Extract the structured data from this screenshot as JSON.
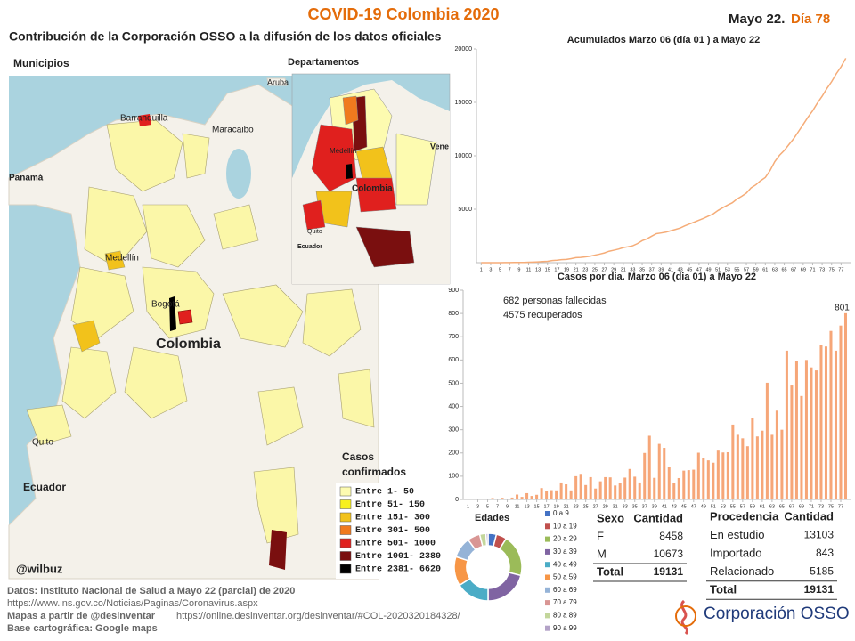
{
  "header": {
    "title": "COVID-19 Colombia 2020",
    "date": "Mayo 22.",
    "day": "Día 78",
    "subtitle": "Contribución de la Corporación OSSO a la difusión de los datos oficiales"
  },
  "maps": {
    "municipios": {
      "title": "Municipios",
      "places": [
        "Aruba",
        "Barranquilla",
        "Maracaibo",
        "Medellín",
        "Bogotá",
        "Colombia",
        "Quito",
        "Ecuador",
        "Panamá"
      ]
    },
    "departamentos": {
      "title": "Departamentos",
      "places": [
        "Medellín",
        "Colombia",
        "Quito",
        "Ecuador",
        "Vene"
      ]
    },
    "legend": {
      "title_lines": [
        "Casos",
        "confirmados"
      ],
      "items": [
        {
          "label": "Entre 1- 50",
          "color": "#fdfbb0"
        },
        {
          "label": "Entre 51- 150",
          "color": "#f7f01e"
        },
        {
          "label": "Entre 151- 300",
          "color": "#f2c21b"
        },
        {
          "label": "Entre 301- 500",
          "color": "#f07a1e"
        },
        {
          "label": "Entre 501- 1000",
          "color": "#e0201e"
        },
        {
          "label": "Entre 1001- 2380",
          "color": "#7a0f0f"
        },
        {
          "label": "Entre 2381- 6620",
          "color": "#000000"
        }
      ]
    },
    "credit": "@wilbuz"
  },
  "chart_data": [
    {
      "type": "line",
      "title": "Acumulados  Marzo 06 (día 01 ) a Mayo 22",
      "color": "#f5ac78",
      "grid": false,
      "x": [
        1,
        2,
        3,
        4,
        5,
        6,
        7,
        8,
        9,
        10,
        11,
        12,
        13,
        14,
        15,
        16,
        17,
        18,
        19,
        20,
        21,
        22,
        23,
        24,
        25,
        26,
        27,
        28,
        29,
        30,
        31,
        32,
        33,
        34,
        35,
        36,
        37,
        38,
        39,
        40,
        41,
        42,
        43,
        44,
        45,
        46,
        47,
        48,
        49,
        50,
        51,
        52,
        53,
        54,
        55,
        56,
        57,
        58,
        59,
        60,
        61,
        62,
        63,
        64,
        65,
        66,
        67,
        68,
        69,
        70,
        71,
        72,
        73,
        74,
        75,
        76,
        77,
        78
      ],
      "values": [
        1,
        1,
        1,
        3,
        3,
        9,
        9,
        16,
        16,
        24,
        45,
        57,
        75,
        102,
        128,
        196,
        231,
        277,
        306,
        378,
        470,
        491,
        539,
        608,
        702,
        798,
        906,
        1065,
        1161,
        1267,
        1406,
        1485,
        1579,
        1780,
        2054,
        2223,
        2473,
        2709,
        2776,
        2852,
        2979,
        3105,
        3233,
        3439,
        3621,
        3792,
        3977,
        4149,
        4356,
        4561,
        4881,
        5142,
        5379,
        5597,
        5949,
        6207,
        6507,
        7006,
        7285,
        7668,
        7973,
        8613,
        9456,
        10051,
        10495,
        11063,
        11613,
        12272,
        12930,
        13610,
        14216,
        14939,
        15574,
        16295,
        16935,
        17687,
        18330,
        19131
      ],
      "xlim": [
        0,
        79
      ],
      "xticks": [
        1,
        3,
        5,
        7,
        9,
        11,
        13,
        15,
        17,
        19,
        21,
        23,
        25,
        27,
        29,
        31,
        33,
        35,
        37,
        39,
        41,
        43,
        45,
        47,
        49,
        51,
        53,
        55,
        57,
        59,
        61,
        63,
        65,
        67,
        69,
        71,
        73,
        75,
        77
      ],
      "ylim": [
        0,
        20000
      ],
      "yticks": [
        5000,
        10000,
        15000,
        20000
      ]
    },
    {
      "type": "bar",
      "title": "Casos por dia. Marzo 06 (dia 01) a Mayo 22",
      "color": "#f6a678",
      "grid": false,
      "show_last_value": true,
      "annotations": [
        "682 personas fallecidas",
        "4575 recuperados"
      ],
      "x": [
        1,
        2,
        3,
        4,
        5,
        6,
        7,
        8,
        9,
        10,
        11,
        12,
        13,
        14,
        15,
        16,
        17,
        18,
        19,
        20,
        21,
        22,
        23,
        24,
        25,
        26,
        27,
        28,
        29,
        30,
        31,
        32,
        33,
        34,
        35,
        36,
        37,
        38,
        39,
        40,
        41,
        42,
        43,
        44,
        45,
        46,
        47,
        48,
        49,
        50,
        51,
        52,
        53,
        54,
        55,
        56,
        57,
        58,
        59,
        60,
        61,
        62,
        63,
        64,
        65,
        66,
        67,
        68,
        69,
        70,
        71,
        72,
        73,
        74,
        75,
        76,
        77,
        78
      ],
      "values": [
        1,
        0,
        0,
        2,
        0,
        6,
        0,
        7,
        0,
        8,
        21,
        11,
        27,
        15,
        20,
        49,
        35,
        40,
        39,
        73,
        65,
        39,
        100,
        110,
        62,
        96,
        47,
        78,
        96,
        95,
        60,
        72,
        94,
        131,
        98,
        73,
        200,
        274,
        93,
        239,
        222,
        138,
        72,
        92,
        124,
        126,
        128,
        201,
        177,
        168,
        158,
        210,
        202,
        203,
        322,
        278,
        263,
        229,
        352,
        271,
        296,
        502,
        278,
        382,
        300,
        640,
        490,
        595,
        445,
        600,
        568,
        555,
        663,
        658,
        725,
        640,
        748,
        801
      ],
      "xlim": [
        0,
        79
      ],
      "xticks": [
        1,
        3,
        5,
        7,
        9,
        11,
        13,
        15,
        17,
        19,
        21,
        23,
        25,
        27,
        29,
        31,
        33,
        35,
        37,
        39,
        41,
        43,
        45,
        47,
        49,
        51,
        53,
        55,
        57,
        59,
        61,
        63,
        65,
        67,
        69,
        71,
        73,
        75,
        77
      ],
      "ylim": [
        0,
        900
      ],
      "yticks": [
        0,
        100,
        200,
        300,
        400,
        500,
        600,
        700,
        800,
        900
      ]
    },
    {
      "type": "pie",
      "donut": true,
      "title": "Edades",
      "categories": [
        "0 a 9",
        "10 a 19",
        "20 a 29",
        "30 a 39",
        "40 a 49",
        "50 a 59",
        "60 a 69",
        "70 a 79",
        "80 a 89",
        "90 a 99"
      ],
      "values": [
        4,
        5,
        20,
        21,
        16,
        14,
        10,
        6,
        3,
        1
      ],
      "colors": [
        "#4472c4",
        "#c0504d",
        "#9bbb59",
        "#8064a2",
        "#4bacc6",
        "#f79646",
        "#95b3d7",
        "#d99694",
        "#c3d69b",
        "#b3a2c7"
      ]
    }
  ],
  "tables": {
    "sexo": {
      "columns": [
        "Sexo",
        "Cantidad"
      ],
      "rows": [
        [
          "F",
          8458
        ],
        [
          "M",
          10673
        ]
      ],
      "total": [
        "Total",
        19131
      ]
    },
    "procedencia": {
      "columns": [
        "Procedencia",
        "Cantidad"
      ],
      "rows": [
        [
          "En estudio",
          13103
        ],
        [
          "Importado",
          843
        ],
        [
          "Relacionado",
          5185
        ]
      ],
      "total": [
        "Total",
        19131
      ]
    }
  },
  "footer": {
    "lines": [
      "Datos: Instituto Nacional de Salud a Mayo 22 (parcial) de 2020",
      "https://www.ins.gov.co/Noticias/Paginas/Coronavirus.aspx",
      "Mapas a partir de @desinventar",
      "https://online.desinventar.org/desinventar/#COL-2020320184328/",
      "Base cartográfica: Google  maps"
    ]
  },
  "logo": "Corporación OSSO"
}
